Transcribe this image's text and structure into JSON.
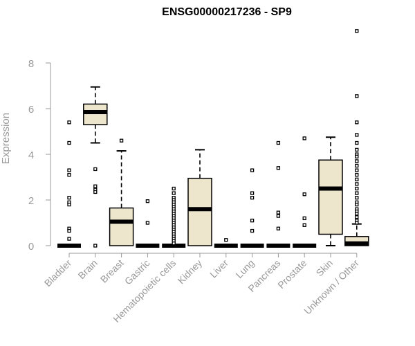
{
  "chart_data": {
    "type": "box",
    "title": "ENSG00000217236 - SP9",
    "ylabel": "Expression",
    "xlabel": "",
    "ylim": [
      0,
      9.6
    ],
    "yticks": [
      0,
      2,
      4,
      6,
      8
    ],
    "grid": false,
    "colors": {
      "box_fill": "#ede6cc",
      "box_stroke": "#000000",
      "axis": "#999999"
    },
    "categories": [
      "Bladder",
      "Brain",
      "Breast",
      "Gastric",
      "Hematopoietic cells",
      "Kidney",
      "Liver",
      "Lung",
      "Pancreas",
      "Prostate",
      "Skin",
      "Unknown / Other"
    ],
    "boxes": [
      {
        "category": "Bladder",
        "q1": 0,
        "median": 0,
        "q3": 0,
        "whisker_low": 0,
        "whisker_high": 0,
        "outliers": [
          5.4,
          4.5,
          3.3,
          3.1,
          2.1,
          1.9,
          1.8,
          0.75,
          0.65,
          0.3
        ]
      },
      {
        "category": "Brain",
        "q1": 5.3,
        "median": 5.85,
        "q3": 6.2,
        "whisker_low": 4.5,
        "whisker_high": 6.95,
        "outliers": [
          3.35,
          2.6,
          2.45,
          2.35,
          0
        ]
      },
      {
        "category": "Breast",
        "q1": 0,
        "median": 1.05,
        "q3": 1.65,
        "whisker_low": 0,
        "whisker_high": 4.15,
        "outliers": [
          4.6
        ]
      },
      {
        "category": "Gastric",
        "q1": 0,
        "median": 0,
        "q3": 0,
        "whisker_low": 0,
        "whisker_high": 0,
        "outliers": [
          1.95,
          1.0
        ]
      },
      {
        "category": "Hematopoietic cells",
        "q1": 0,
        "median": 0,
        "q3": 0,
        "whisker_low": 0,
        "whisker_high": 0,
        "outliers": [
          2.5,
          2.3,
          2.1,
          2.0,
          1.9,
          1.8,
          1.7,
          1.6,
          1.5,
          1.4,
          1.3,
          1.2,
          1.1,
          1.0,
          0.9,
          0.8,
          0.7,
          0.6,
          0.5,
          0.4,
          0.3,
          0.2,
          0.1
        ]
      },
      {
        "category": "Kidney",
        "q1": 0,
        "median": 1.6,
        "q3": 2.95,
        "whisker_low": 0,
        "whisker_high": 4.2,
        "outliers": []
      },
      {
        "category": "Liver",
        "q1": 0,
        "median": 0,
        "q3": 0,
        "whisker_low": 0,
        "whisker_high": 0,
        "outliers": [
          0.25
        ]
      },
      {
        "category": "Lung",
        "q1": 0,
        "median": 0,
        "q3": 0,
        "whisker_low": 0,
        "whisker_high": 0,
        "outliers": [
          3.3,
          2.3,
          2.1,
          1.1,
          0.65
        ]
      },
      {
        "category": "Pancreas",
        "q1": 0,
        "median": 0,
        "q3": 0,
        "whisker_low": 0,
        "whisker_high": 0,
        "outliers": [
          4.5,
          3.4,
          1.45,
          1.3,
          0.75
        ]
      },
      {
        "category": "Prostate",
        "q1": 0,
        "median": 0,
        "q3": 0,
        "whisker_low": 0,
        "whisker_high": 0,
        "outliers": [
          4.7,
          2.25,
          1.2,
          0.9
        ]
      },
      {
        "category": "Skin",
        "q1": 0.5,
        "median": 2.5,
        "q3": 3.75,
        "whisker_low": 0,
        "whisker_high": 4.75,
        "outliers": []
      },
      {
        "category": "Unknown / Other",
        "q1": 0,
        "median": 0.1,
        "q3": 0.4,
        "whisker_low": 0,
        "whisker_high": 0.95,
        "outliers": [
          9.4,
          6.55,
          5.4,
          4.85,
          4.5,
          4.2,
          4.0,
          3.9,
          3.7,
          3.5,
          3.3,
          3.1,
          2.9,
          2.7,
          2.5,
          2.3,
          2.1,
          1.9,
          1.8,
          1.6,
          1.5,
          1.4,
          1.25,
          1.1,
          1.0
        ]
      }
    ]
  }
}
